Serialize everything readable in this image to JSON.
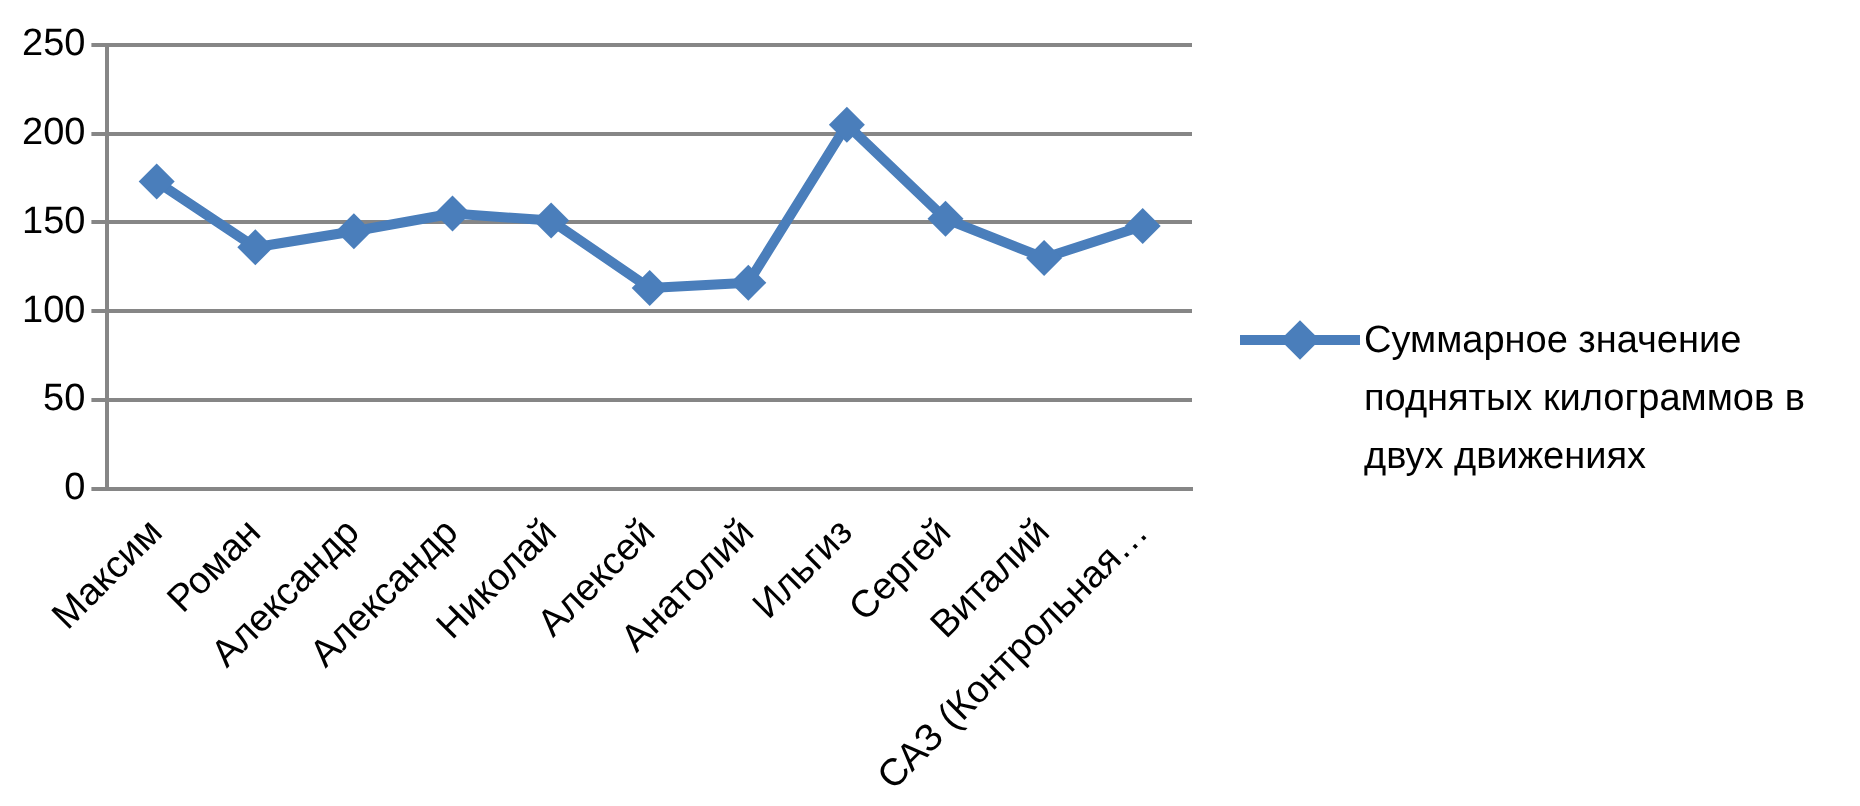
{
  "chart_data": {
    "type": "line",
    "categories": [
      "Максим",
      "Роман",
      "Александр",
      "Александр",
      "Николай",
      "Алексей",
      "Анатолий",
      "Ильгиз",
      "Сергей",
      "Виталий",
      "САЗ (Контрольная…"
    ],
    "series": [
      {
        "name": "Суммарное значение поднятых килограммов в двух движениях",
        "color": "#4a7ebb",
        "values": [
          173,
          136,
          145,
          155,
          151,
          113,
          116,
          205,
          152,
          130,
          148
        ]
      }
    ],
    "ylim": [
      0,
      250
    ],
    "yticks": [
      0,
      50,
      100,
      150,
      200,
      250
    ],
    "grid": "y",
    "legend": "right",
    "marker": "diamond",
    "line_style": "solid"
  }
}
